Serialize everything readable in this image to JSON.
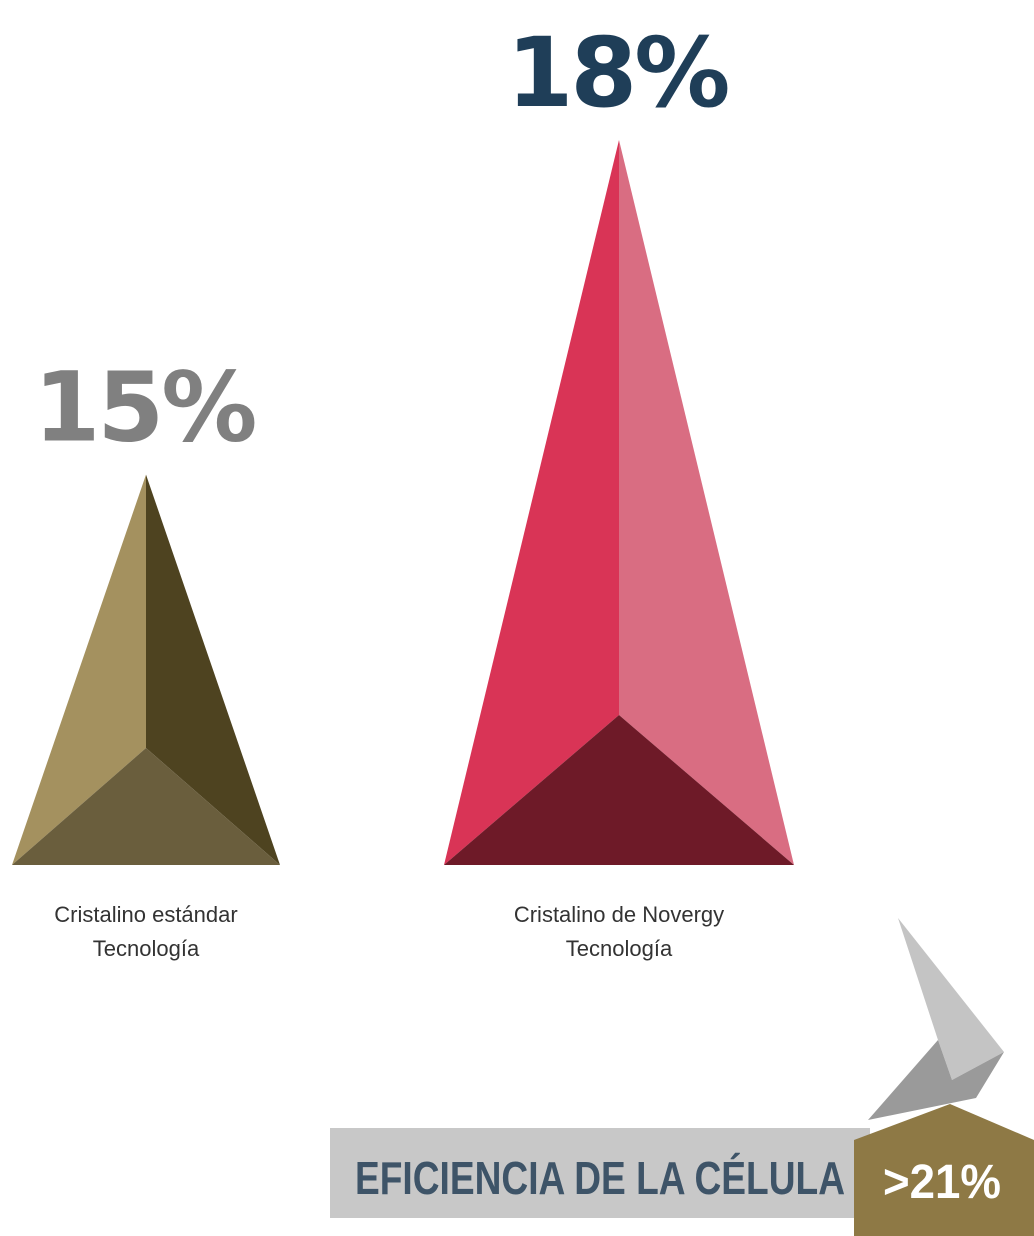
{
  "chart_data": {
    "type": "bar",
    "title": "",
    "categories": [
      "Cristalino estándar Tecnología",
      "Cristalino de Novergy Tecnología"
    ],
    "values": [
      15,
      18
    ],
    "value_labels": [
      "15%",
      "18%"
    ],
    "category_lines": [
      [
        "Cristalino estándar",
        "Tecnología"
      ],
      [
        "Cristalino de Novergy",
        "Tecnología"
      ]
    ],
    "mark_shape": "triangular-pyramid",
    "ylim": [
      0,
      18
    ],
    "grid": false,
    "axes_visible": false
  },
  "banner": {
    "label": "EFICIENCIA DE LA CÉLULA",
    "value": ">21%"
  },
  "colors": {
    "pyramid_1": {
      "left": "#a4915f",
      "right": "#4e4320",
      "base": "#6a5e3d"
    },
    "pyramid_2": {
      "left": "#d93456",
      "right": "#d96d82",
      "base": "#6e1a28"
    },
    "label_1": "#808080",
    "label_2": "#1f3e58",
    "caption": "#333333",
    "banner_bg": "#c8c8c8",
    "banner_text": "#3e5468",
    "badge_bg": "#8e7945",
    "badge_text": "#ffffff",
    "arrow_light": "#c4c4c4",
    "arrow_dark": "#9a9a9a"
  }
}
